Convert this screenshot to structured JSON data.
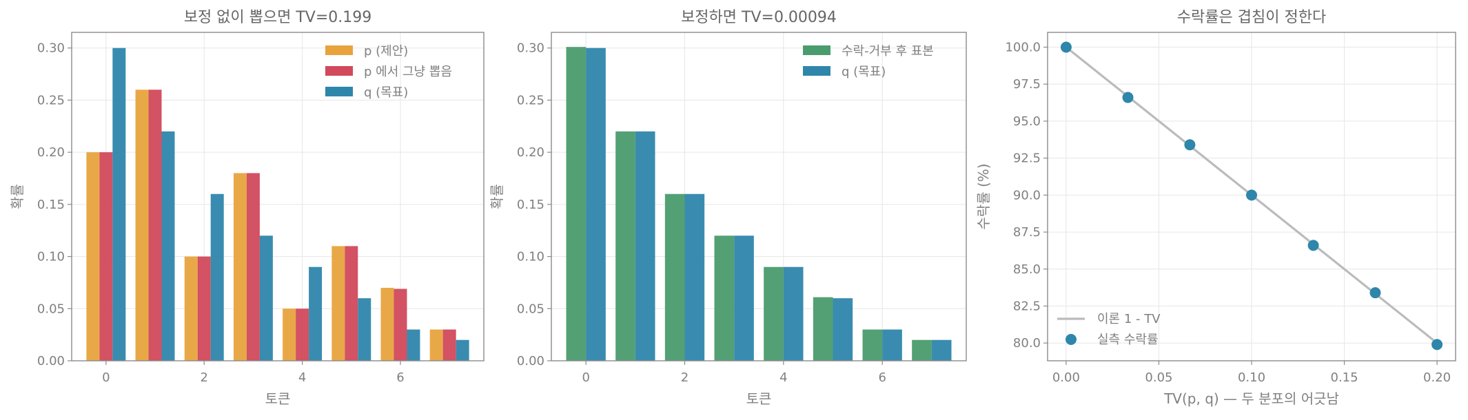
{
  "colors": {
    "p": "#E8A33D",
    "p_sample": "#D1495B",
    "q": "#2E86AB",
    "accept": "#4A9B6E",
    "theory": "#BBBBBB"
  },
  "chart_data": [
    {
      "type": "bar",
      "title": "보정 없이 뽑으면 TV=0.199",
      "xlabel": "토큰",
      "ylabel": "확률",
      "categories": [
        0,
        1,
        2,
        3,
        4,
        5,
        6,
        7
      ],
      "xticks": [
        "0",
        "2",
        "4",
        "6"
      ],
      "yticks": [
        "0.00",
        "0.05",
        "0.10",
        "0.15",
        "0.20",
        "0.25",
        "0.30"
      ],
      "xlim": [
        -0.7,
        7.7
      ],
      "ylim": [
        0,
        0.315
      ],
      "legend_position": "top-right",
      "grid": true,
      "series": [
        {
          "name": "p (제안)",
          "color": "#E8A33D",
          "values": [
            0.2,
            0.26,
            0.1,
            0.18,
            0.05,
            0.11,
            0.07,
            0.03
          ]
        },
        {
          "name": "p 에서 그냥 뽑음",
          "color": "#D1495B",
          "values": [
            0.2,
            0.26,
            0.1,
            0.18,
            0.05,
            0.11,
            0.069,
            0.03
          ]
        },
        {
          "name": "q (목표)",
          "color": "#2E86AB",
          "values": [
            0.3,
            0.22,
            0.16,
            0.12,
            0.09,
            0.06,
            0.03,
            0.02
          ]
        }
      ]
    },
    {
      "type": "bar",
      "title": "보정하면 TV=0.00094",
      "xlabel": "토큰",
      "ylabel": "확률",
      "categories": [
        0,
        1,
        2,
        3,
        4,
        5,
        6,
        7
      ],
      "xticks": [
        "0",
        "2",
        "4",
        "6"
      ],
      "yticks": [
        "0.00",
        "0.05",
        "0.10",
        "0.15",
        "0.20",
        "0.25",
        "0.30"
      ],
      "xlim": [
        -0.7,
        7.7
      ],
      "ylim": [
        0,
        0.315
      ],
      "legend_position": "top-right",
      "grid": true,
      "series": [
        {
          "name": "수락-거부 후 표본",
          "color": "#4A9B6E",
          "values": [
            0.301,
            0.22,
            0.16,
            0.12,
            0.09,
            0.061,
            0.03,
            0.02
          ]
        },
        {
          "name": "q (목표)",
          "color": "#2E86AB",
          "values": [
            0.3,
            0.22,
            0.16,
            0.12,
            0.09,
            0.06,
            0.03,
            0.02
          ]
        }
      ]
    },
    {
      "type": "line",
      "title": "수락률은 겹침이 정한다",
      "xlabel": "TV(p, q) — 두 분포의 어긋남",
      "ylabel": "수락률 (%)",
      "xticks": [
        "0.00",
        "0.05",
        "0.10",
        "0.15",
        "0.20"
      ],
      "yticks": [
        "80.0",
        "82.5",
        "85.0",
        "87.5",
        "90.0",
        "92.5",
        "95.0",
        "97.5",
        "100.0"
      ],
      "xlim": [
        -0.01,
        0.21
      ],
      "ylim": [
        78.8,
        101.0
      ],
      "legend_position": "bottom-left",
      "grid": true,
      "series": [
        {
          "name": "이론 1 - TV",
          "color": "#BBBBBB",
          "style": "line",
          "x": [
            0.0,
            0.2
          ],
          "y": [
            100.0,
            80.0
          ]
        },
        {
          "name": "실측 수락률",
          "color": "#2E86AB",
          "style": "scatter",
          "x": [
            0.0,
            0.0333,
            0.0667,
            0.1,
            0.1333,
            0.1667,
            0.2
          ],
          "y": [
            100.0,
            96.6,
            93.4,
            90.0,
            86.6,
            83.4,
            79.9
          ]
        }
      ]
    }
  ]
}
